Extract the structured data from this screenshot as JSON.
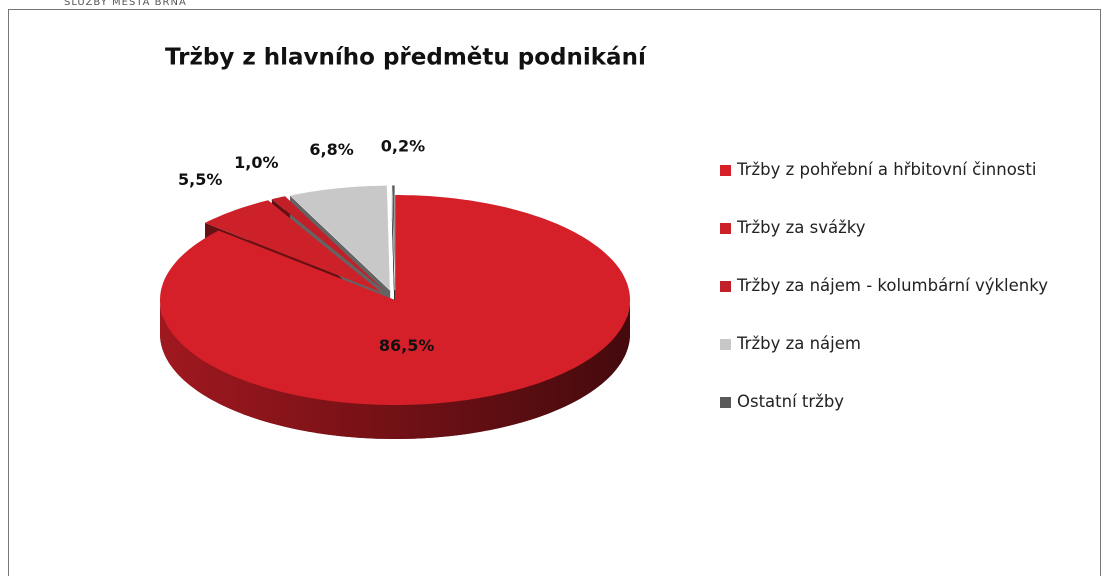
{
  "page_header": "SLUŽBY MĚSTA BRNA",
  "chart_data": {
    "type": "pie",
    "title": "Tržby z hlavního předmětu podnikání",
    "categories": [
      "Tržby z pohřební a hřbitovní činnosti",
      "Tržby za svážky",
      "Tržby za nájem - kolumbární výklenky",
      "Tržby za nájem",
      "Ostatní tržby"
    ],
    "values": [
      86.5,
      5.5,
      1.0,
      6.8,
      0.2
    ],
    "value_labels": [
      "86,5%",
      "5,5%",
      "1,0%",
      "6,8%",
      "0,2%"
    ],
    "colors": [
      "#d52029",
      "#cd2129",
      "#c21f28",
      "#c8c8c8",
      "#5a5a5a"
    ],
    "legend": "right"
  }
}
